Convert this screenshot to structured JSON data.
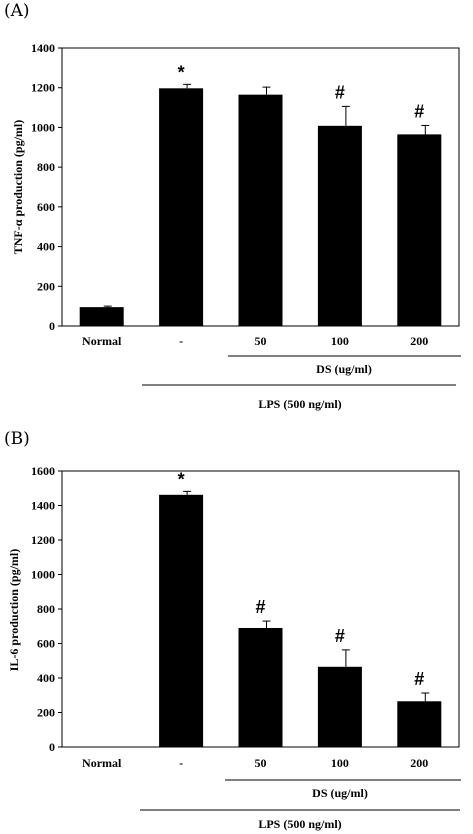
{
  "chart_data": [
    {
      "type": "bar",
      "panel_label": "(A)",
      "ylabel": "TNF-α production (pg/ml)",
      "ylim": [
        0,
        1400
      ],
      "yticks": [
        "0",
        "200",
        "400",
        "600",
        "800",
        "1000",
        "1200",
        "1400"
      ],
      "categories": [
        "Normal",
        "-",
        "50",
        "100",
        "200"
      ],
      "values": [
        95,
        1197,
        1165,
        1008,
        965
      ],
      "errors": [
        5,
        20,
        38,
        98,
        45
      ],
      "annotations": [
        "",
        "*",
        "",
        "#",
        "#"
      ],
      "group_label": "DS (ug/ml)",
      "treatment_label": "LPS (500 ng/ml)",
      "bar_color": "#000000"
    },
    {
      "type": "bar",
      "panel_label": "(B)",
      "ylabel": "IL-6 production (pg/ml)",
      "ylim": [
        0,
        1600
      ],
      "yticks": [
        "0",
        "200",
        "400",
        "600",
        "800",
        "1000",
        "1200",
        "1400",
        "1600"
      ],
      "categories": [
        "Normal",
        "-",
        "50",
        "100",
        "200"
      ],
      "values": [
        2,
        1462,
        690,
        465,
        265
      ],
      "errors": [
        0,
        20,
        40,
        98,
        48
      ],
      "annotations": [
        "",
        "*",
        "#",
        "#",
        "#"
      ],
      "group_label": "DS (ug/ml)",
      "treatment_label": "LPS (500 ng/ml)",
      "bar_color": "#000000"
    }
  ]
}
